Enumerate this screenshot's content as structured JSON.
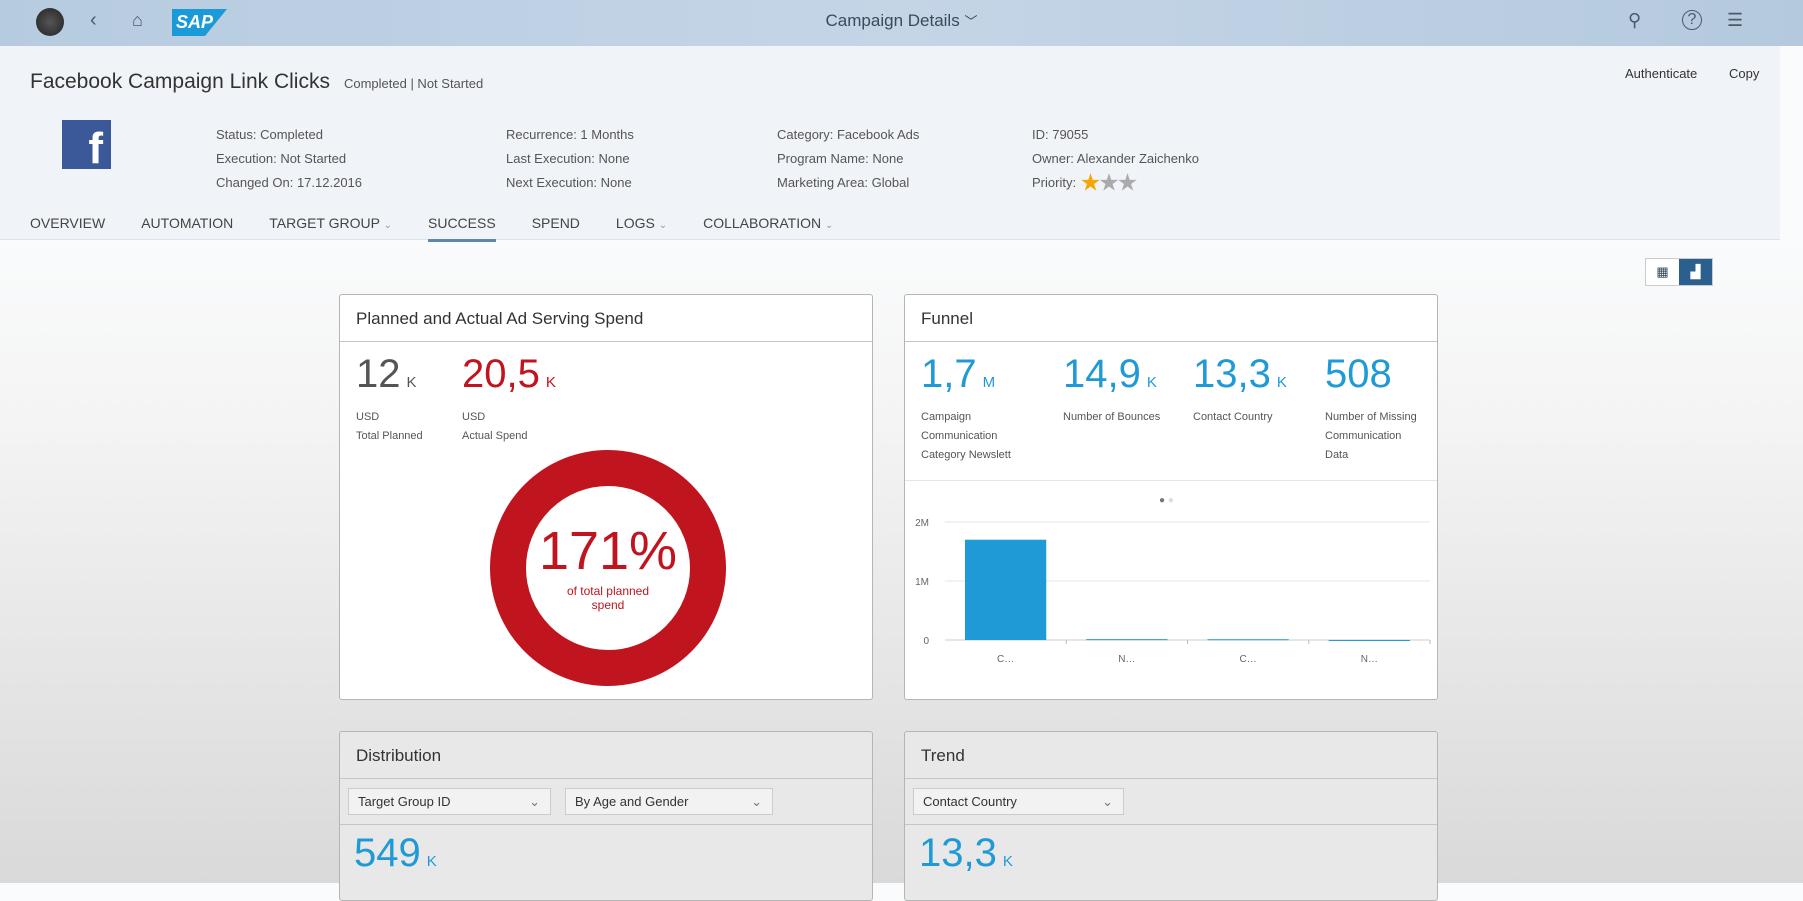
{
  "shell": {
    "title": "Campaign Details",
    "logo": "SAP",
    "icons": [
      "user-avatar-icon",
      "back-icon",
      "home-icon",
      "search-icon",
      "help-icon",
      "notifications-icon"
    ]
  },
  "header": {
    "title": "Facebook Campaign Link Clicks",
    "subtitle": "Completed | Not Started",
    "actions": [
      "Authenticate",
      "Copy"
    ],
    "columns": [
      [
        "Status: Completed",
        "Execution: Not Started",
        "Changed On: 17.12.2016"
      ],
      [
        "Recurrence: 1 Months",
        "Last Execution: None",
        "Next Execution: None"
      ],
      [
        "Category: Facebook Ads",
        "Program Name: None",
        "Marketing Area: Global"
      ],
      [
        "ID: 79055",
        "Owner: Alexander Zaichenko"
      ]
    ],
    "priority_label": "Priority:",
    "priority_stars": 1,
    "priority_max": 3
  },
  "tabs": [
    {
      "label": "OVERVIEW"
    },
    {
      "label": "AUTOMATION"
    },
    {
      "label": "TARGET GROUP",
      "dropdown": true
    },
    {
      "label": "SUCCESS",
      "selected": true
    },
    {
      "label": "SPEND"
    },
    {
      "label": "LOGS",
      "dropdown": true
    },
    {
      "label": "COLLABORATION",
      "dropdown": true
    }
  ],
  "spend": {
    "title": "Planned and Actual Ad Serving Spend",
    "planned": {
      "value": "12",
      "unit": "K",
      "currency": "USD",
      "label": "Total Planned"
    },
    "actual": {
      "value": "20,5",
      "unit": "K",
      "currency": "USD",
      "label": "Actual Spend"
    },
    "percent": "171%",
    "percent_label": "of total planned spend",
    "percent_value": 171,
    "color": "#c0141f"
  },
  "funnel": {
    "title": "Funnel",
    "kpis": [
      {
        "value": "1,7",
        "unit": "M",
        "label": "Campaign Communication Category Newslett"
      },
      {
        "value": "14,9",
        "unit": "K",
        "label": "Number of Bounces"
      },
      {
        "value": "13,3",
        "unit": "K",
        "label": "Contact Country"
      },
      {
        "value": "508",
        "unit": "",
        "label": "Number of Missing Communication Data"
      }
    ]
  },
  "chart_data": {
    "type": "bar",
    "categories": [
      "C…",
      "N…",
      "C…",
      "N…"
    ],
    "values": [
      1700000,
      14900,
      13300,
      508
    ],
    "yticks": [
      "0",
      "1M",
      "2M"
    ],
    "ylim": [
      0,
      2000000
    ],
    "grid": true,
    "color": "#1f9ad6"
  },
  "distribution": {
    "title": "Distribution",
    "select1": "Target Group ID",
    "select2": "By Age and Gender",
    "value": "549",
    "unit": "K"
  },
  "trend": {
    "title": "Trend",
    "select1": "Contact Country",
    "value": "13,3",
    "unit": "K"
  }
}
